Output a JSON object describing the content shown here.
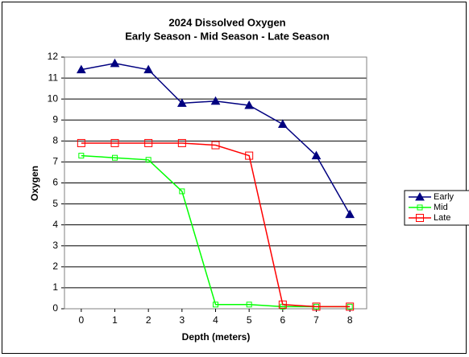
{
  "chart_data": {
    "type": "line",
    "title": "2024  Dissolved Oxygen",
    "subtitle": "Early Season - Mid Season - Late Season",
    "x_label": "Depth (meters)",
    "y_label": "Oxygen",
    "x": [
      0,
      1,
      2,
      3,
      4,
      5,
      6,
      7,
      8
    ],
    "xlim": [
      -0.5,
      8.5
    ],
    "xticks": [
      0,
      1,
      2,
      3,
      4,
      5,
      6,
      7,
      8
    ],
    "ylim": [
      0,
      12
    ],
    "yticks": [
      0,
      1,
      2,
      3,
      4,
      5,
      6,
      7,
      8,
      9,
      10,
      11,
      12
    ],
    "grid": true,
    "legend": "right",
    "series": [
      {
        "name": "Early",
        "color": "#000080",
        "marker": "triangle",
        "values": [
          11.4,
          11.7,
          11.4,
          9.8,
          9.9,
          9.7,
          8.8,
          7.3,
          4.5
        ]
      },
      {
        "name": "Mid",
        "color": "#00ff00",
        "marker": "square",
        "values": [
          7.3,
          7.2,
          7.1,
          5.6,
          0.2,
          0.2,
          0.1,
          0.1,
          0.1
        ]
      },
      {
        "name": "Late",
        "color": "#ff0000",
        "marker": "square",
        "values": [
          7.9,
          7.9,
          7.9,
          7.9,
          7.8,
          7.3,
          0.2,
          0.1,
          0.1
        ]
      }
    ]
  }
}
